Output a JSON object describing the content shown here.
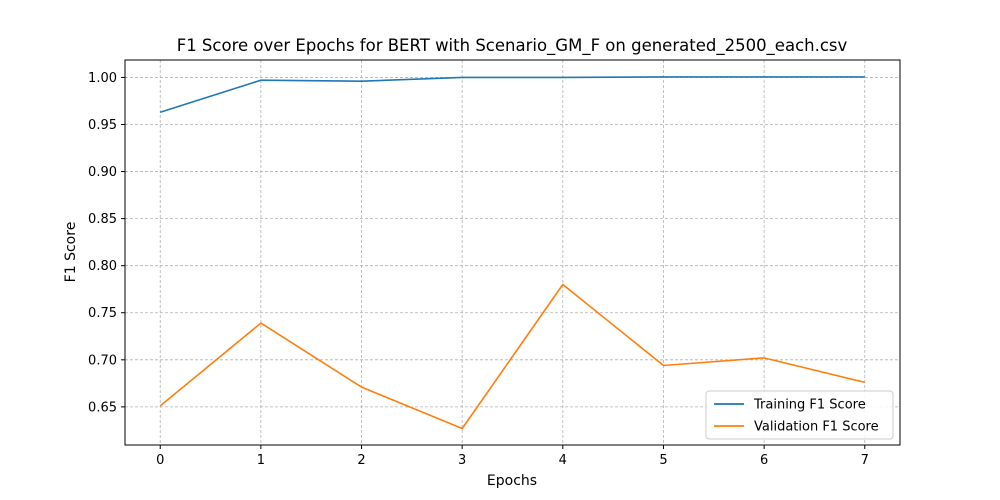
{
  "chart_data": {
    "type": "line",
    "title": "F1 Score over Epochs for BERT with Scenario_GM_F on generated_2500_each.csv",
    "xlabel": "Epochs",
    "ylabel": "F1 Score",
    "x": [
      0,
      1,
      2,
      3,
      4,
      5,
      6,
      7
    ],
    "xticks": [
      "0",
      "1",
      "2",
      "3",
      "4",
      "5",
      "6",
      "7"
    ],
    "yticks": [
      "0.65",
      "0.70",
      "0.75",
      "0.80",
      "0.85",
      "0.90",
      "0.95",
      "1.00"
    ],
    "xlim": [
      -0.35,
      7.35
    ],
    "ylim": [
      0.6095,
      1.0185
    ],
    "grid": true,
    "legend_position": "lower-right",
    "series": [
      {
        "name": "Training F1 Score",
        "color": "#1f77b4",
        "values": [
          0.963,
          0.997,
          0.996,
          1.0,
          1.0,
          1.0005,
          1.0005,
          1.0005
        ]
      },
      {
        "name": "Validation F1 Score",
        "color": "#ff7f0e",
        "values": [
          0.651,
          0.739,
          0.671,
          0.627,
          0.78,
          0.694,
          0.702,
          0.676
        ]
      }
    ]
  }
}
